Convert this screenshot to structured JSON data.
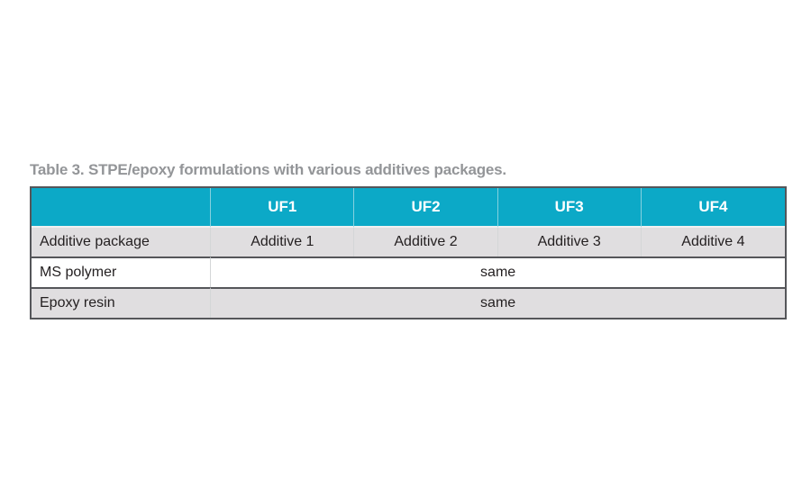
{
  "title": "Table 3. STPE/epoxy formulations with various additives packages.",
  "table": {
    "columns": [
      "",
      "UF1",
      "UF2",
      "UF3",
      "UF4"
    ],
    "rows": [
      {
        "label": "Additive package",
        "cells": [
          "Additive 1",
          "Additive 2",
          "Additive 3",
          "Additive 4"
        ]
      },
      {
        "label": "MS polymer",
        "merged_value": "same"
      },
      {
        "label": "Epoxy resin",
        "merged_value": "same"
      }
    ]
  },
  "colors": {
    "header_bg": "#0ca9c7",
    "header_text": "#ffffff",
    "row_alt_bg": "#e0dee0",
    "row_bg": "#ffffff",
    "border_dark": "#55565a",
    "separator_light": "#d4d6d7",
    "title_text": "#939598",
    "cell_text": "#231f20"
  }
}
